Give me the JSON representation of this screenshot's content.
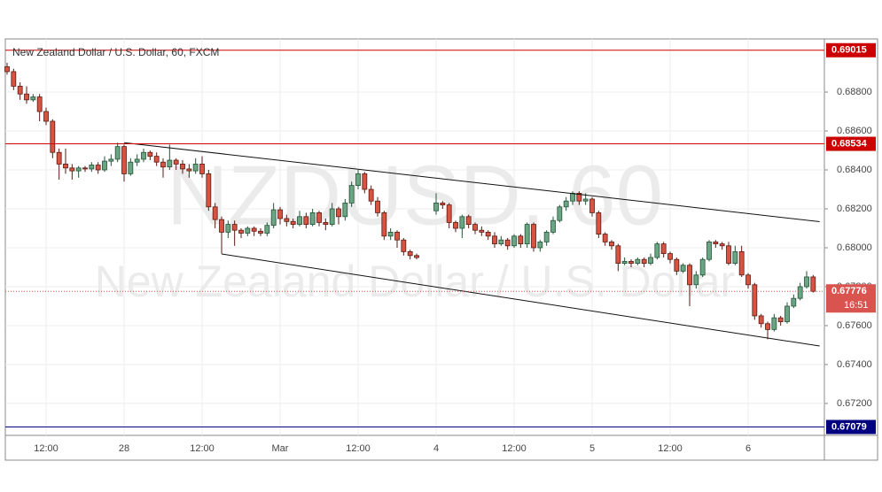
{
  "chart_data": {
    "type": "candlestick",
    "title": "New Zealand Dollar / U.S. Dollar, 60, FXCM",
    "watermark": "NZDUSD, 60",
    "watermark_subtitle": "New Zealand Dollar / U.S. Dollar",
    "categories": [
      null,
      null,
      null,
      null,
      null,
      null,
      "12:00",
      null,
      null,
      null,
      null,
      null,
      null,
      null,
      null,
      null,
      null,
      null,
      "28",
      null,
      null,
      null,
      null,
      null,
      null,
      null,
      null,
      null,
      null,
      null,
      "12:00",
      null,
      null,
      null,
      null,
      null,
      null,
      null,
      null,
      null,
      null,
      null,
      "Mar",
      null,
      null,
      null,
      null,
      null,
      null,
      null,
      null,
      null,
      null,
      null,
      "12:00",
      null,
      null,
      null,
      null,
      null,
      null,
      null,
      null,
      null,
      null,
      null,
      "4",
      null,
      null,
      null,
      null,
      null,
      null,
      null,
      null,
      null,
      null,
      null,
      "12:00",
      null,
      null,
      null,
      null,
      null,
      null,
      null,
      null,
      null,
      null,
      null,
      "5",
      null,
      null,
      null,
      null,
      null,
      null,
      null,
      null,
      null,
      null,
      null,
      "12:00",
      null,
      null,
      null,
      null,
      null,
      null,
      null,
      null,
      null,
      null,
      null,
      "6",
      null,
      null,
      null,
      null,
      null,
      null,
      null,
      null,
      null,
      null
    ],
    "open": [
      0.6893,
      0.68905,
      0.6883,
      0.6879,
      0.6876,
      0.68775,
      0.687,
      0.6865,
      0.6849,
      0.6843,
      0.6841,
      0.68395,
      0.6841,
      0.68405,
      0.68425,
      0.684,
      0.68445,
      0.68455,
      0.6852,
      0.6838,
      0.6844,
      0.68455,
      0.6849,
      0.6847,
      0.6844,
      0.68415,
      0.6845,
      0.6843,
      0.68405,
      0.68395,
      0.6843,
      0.6838,
      0.6821,
      0.68145,
      0.6808,
      0.6812,
      0.6809,
      0.68075,
      0.681,
      0.68085,
      0.68075,
      0.68115,
      0.68195,
      0.6815,
      0.68135,
      0.6812,
      0.6816,
      0.6812,
      0.6818,
      0.6813,
      0.6812,
      0.682,
      0.6816,
      0.6823,
      0.6832,
      0.6838,
      0.683,
      0.6824,
      0.6818,
      0.6806,
      0.6808,
      0.6804,
      0.6798,
      0.6796,
      null,
      null,
      0.6819,
      0.6823,
      0.6822,
      0.6813,
      0.681,
      0.6816,
      0.6812,
      0.6809,
      0.6808,
      0.6806,
      0.6802,
      0.6804,
      0.6801,
      0.6806,
      0.6802,
      0.6812,
      0.68,
      0.6803,
      0.6808,
      0.6814,
      0.6821,
      0.6824,
      0.6828,
      0.6824,
      0.6825,
      0.6818,
      0.6807,
      0.6803,
      0.6801,
      0.6792,
      0.6793,
      0.6792,
      0.6794,
      0.6792,
      0.6795,
      0.6802,
      0.6797,
      0.6794,
      0.6788,
      0.6791,
      0.6781,
      0.6786,
      0.6794,
      0.6803,
      0.6802,
      0.6801,
      0.6792,
      0.6798,
      0.6786,
      0.6781,
      0.6765,
      0.6761,
      0.6758,
      0.6764,
      0.6762,
      0.677,
      0.6774,
      0.678,
      0.6785
    ],
    "high": [
      0.6895,
      0.6892,
      0.6885,
      0.6883,
      0.6879,
      0.6879,
      0.6872,
      0.6866,
      0.6851,
      0.6851,
      0.6843,
      0.6842,
      0.6842,
      0.6844,
      0.6844,
      0.6847,
      0.6848,
      0.6854,
      0.6853,
      0.6846,
      0.6848,
      0.6851,
      0.685,
      0.6849,
      0.6846,
      0.6853,
      0.6846,
      0.6845,
      0.6843,
      0.6846,
      0.6847,
      0.684,
      0.6823,
      0.6816,
      0.6814,
      0.6814,
      0.681,
      0.6811,
      0.6811,
      0.681,
      0.6813,
      0.6823,
      0.6821,
      0.6817,
      0.6815,
      0.6819,
      0.6818,
      0.682,
      0.6819,
      0.6815,
      0.6823,
      0.6821,
      0.6825,
      0.6834,
      0.684,
      0.6839,
      0.6832,
      0.6826,
      0.6819,
      0.681,
      0.6809,
      0.6805,
      0.6799,
      0.6797,
      null,
      null,
      0.6828,
      0.6824,
      0.6823,
      0.6814,
      0.6817,
      0.6817,
      0.6813,
      0.6811,
      0.6809,
      0.6808,
      0.6806,
      0.6805,
      0.6807,
      0.6807,
      0.6813,
      0.6813,
      0.6804,
      0.6809,
      0.6816,
      0.6822,
      0.6826,
      0.6829,
      0.6829,
      0.6828,
      0.6826,
      0.6819,
      0.6808,
      0.6804,
      0.6802,
      0.6795,
      0.6794,
      0.6795,
      0.6795,
      0.6797,
      0.6803,
      0.6803,
      0.6798,
      0.6795,
      0.6792,
      0.6792,
      0.6788,
      0.6795,
      0.6804,
      0.6804,
      0.6803,
      0.6803,
      0.6801,
      0.6801,
      0.6787,
      0.6782,
      0.6766,
      0.6762,
      0.6766,
      0.6765,
      0.6772,
      0.6776,
      0.6782,
      0.6788,
      0.6786
    ],
    "low": [
      0.6889,
      0.6881,
      0.6876,
      0.6874,
      0.6875,
      0.6865,
      0.6863,
      0.6846,
      0.6835,
      0.6838,
      0.6835,
      0.6836,
      0.6839,
      0.6839,
      0.6838,
      0.6839,
      0.6842,
      0.6844,
      0.6834,
      0.6837,
      0.6842,
      0.6844,
      0.6845,
      0.6842,
      0.6836,
      0.684,
      0.684,
      0.6838,
      0.6836,
      0.6838,
      0.6836,
      0.6819,
      0.681,
      0.6797,
      0.6805,
      0.6801,
      0.6805,
      0.6806,
      0.6806,
      0.6806,
      0.6806,
      0.681,
      0.6812,
      0.6811,
      0.681,
      0.6811,
      0.681,
      0.6811,
      0.6811,
      0.6809,
      0.6811,
      0.6812,
      0.6814,
      0.6821,
      0.683,
      0.6828,
      0.6822,
      0.6816,
      0.6804,
      0.6804,
      0.68,
      0.6796,
      0.6794,
      0.6794,
      null,
      null,
      0.6817,
      0.682,
      0.681,
      0.6808,
      0.6805,
      0.681,
      0.6807,
      0.6806,
      0.6804,
      0.68,
      0.6801,
      0.6799,
      0.68,
      0.68,
      0.68,
      0.6798,
      0.6798,
      0.6801,
      0.6807,
      0.6813,
      0.6819,
      0.6822,
      0.6822,
      0.6822,
      0.6816,
      0.6805,
      0.6801,
      0.6799,
      0.6788,
      0.6791,
      0.679,
      0.6791,
      0.679,
      0.6791,
      0.6794,
      0.6795,
      0.6792,
      0.6786,
      0.6787,
      0.677,
      0.6779,
      0.6785,
      0.6793,
      0.68,
      0.6799,
      0.6791,
      0.6791,
      0.6785,
      0.6779,
      0.6763,
      0.6759,
      0.6753,
      0.6757,
      0.676,
      0.6761,
      0.6769,
      0.6773,
      0.6779,
      0.6777
    ],
    "close": [
      0.68905,
      0.6883,
      0.6879,
      0.6876,
      0.68775,
      0.687,
      0.6865,
      0.6849,
      0.6843,
      0.6841,
      0.68395,
      0.6841,
      0.68405,
      0.68425,
      0.684,
      0.68445,
      0.68455,
      0.6852,
      0.6838,
      0.6844,
      0.68455,
      0.6849,
      0.6847,
      0.6844,
      0.68415,
      0.6845,
      0.6843,
      0.68405,
      0.68395,
      0.6843,
      0.6838,
      0.6821,
      0.68145,
      0.6808,
      0.6812,
      0.6809,
      0.68075,
      0.681,
      0.68085,
      0.68075,
      0.68115,
      0.68195,
      0.6815,
      0.68135,
      0.6812,
      0.6816,
      0.6812,
      0.6818,
      0.6813,
      0.6812,
      0.682,
      0.6816,
      0.6823,
      0.6832,
      0.6838,
      0.683,
      0.6824,
      0.6818,
      0.6806,
      0.6808,
      0.6804,
      0.6798,
      0.6796,
      0.6795,
      null,
      null,
      0.6823,
      0.6822,
      0.6813,
      0.681,
      0.6816,
      0.6812,
      0.6809,
      0.6808,
      0.6806,
      0.6802,
      0.6804,
      0.6801,
      0.6806,
      0.6802,
      0.6812,
      0.68,
      0.6803,
      0.6808,
      0.6814,
      0.6821,
      0.6824,
      0.6828,
      0.6824,
      0.6825,
      0.6818,
      0.6807,
      0.6803,
      0.6801,
      0.6792,
      0.6793,
      0.6792,
      0.6794,
      0.6792,
      0.6795,
      0.6802,
      0.6797,
      0.6794,
      0.6788,
      0.6791,
      0.6781,
      0.6786,
      0.6794,
      0.6803,
      0.6802,
      0.6801,
      0.6792,
      0.6798,
      0.6786,
      0.6781,
      0.6765,
      0.6761,
      0.6758,
      0.6764,
      0.6762,
      0.677,
      0.6774,
      0.678,
      0.6785,
      0.67776
    ],
    "up_color": "#6ba583",
    "down_color": "#d75442",
    "ylim": [
      0.67036,
      0.69073
    ],
    "yticks": [
      {
        "value": 0.672,
        "label": "0.67200"
      },
      {
        "value": 0.674,
        "label": "0.67400"
      },
      {
        "value": 0.676,
        "label": "0.67600"
      },
      {
        "value": 0.678,
        "label": "0.67800"
      },
      {
        "value": 0.68,
        "label": "0.68000"
      },
      {
        "value": 0.682,
        "label": "0.68200"
      },
      {
        "value": 0.684,
        "label": "0.68400"
      },
      {
        "value": 0.686,
        "label": "0.68600"
      },
      {
        "value": 0.688,
        "label": "0.68800"
      }
    ],
    "grid": true,
    "levels": [
      {
        "value": 0.69015,
        "label": "0.69015",
        "color": "#cc0000"
      },
      {
        "value": 0.68534,
        "label": "0.68534",
        "color": "#cc0000"
      },
      {
        "value": 0.67079,
        "label": "0.67079",
        "color": "#000080"
      }
    ],
    "last_price": {
      "value": 0.67776,
      "label": "0.67776",
      "countdown": "16:51",
      "color": "#d9534f"
    },
    "trendlines": [
      {
        "x": [
          18,
          125
        ],
        "y": [
          0.6854,
          0.68134
        ]
      },
      {
        "x": [
          33,
          125
        ],
        "y": [
          0.67968,
          0.67495
        ]
      }
    ]
  }
}
